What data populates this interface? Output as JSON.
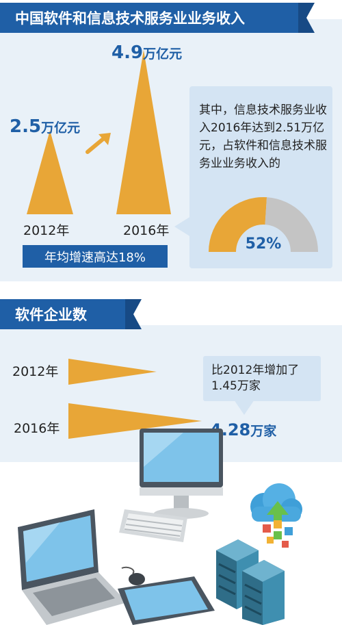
{
  "revenue_section": {
    "title": "中国软件和信息技术服务业业务收入",
    "growth_label": "年均增速高达18%",
    "callout_text": "其中，信息技术服务业收入2016年达到2.51万亿元，占软件和信息技术服务业业务收入的",
    "share_percent_label": "52%"
  },
  "enterprise_section": {
    "title": "软件企业数",
    "callout_text": "比2012年增加了1.45万家"
  },
  "colors": {
    "brand_blue": "#1f5fa6",
    "accent_orange": "#e8a637",
    "panel_bg": "#e9f1f8",
    "callout_bg": "#d4e4f3",
    "gauge_gray": "#c4c4c4"
  },
  "icons": [
    "arrow-up-right-icon",
    "monitor-icon",
    "keyboard-icon",
    "laptop-icon",
    "mouse-icon",
    "tablet-icon",
    "cloud-upload-icon",
    "server-rack-icon"
  ],
  "chart_data": [
    {
      "type": "bar",
      "name": "",
      "unit": "万亿元",
      "categories": [
        "2012年",
        "2016年"
      ],
      "values": [
        2.5,
        4.9
      ],
      "value_labels": [
        {
          "num": "2.5",
          "unit": "万亿元"
        },
        {
          "num": "4.9",
          "unit": "万亿元"
        }
      ]
    },
    {
      "type": "pie",
      "name": "",
      "values": [
        52,
        48
      ],
      "label": "52%"
    },
    {
      "type": "bar",
      "name": "",
      "orientation": "horizontal",
      "categories": [
        "2012年",
        "2016年"
      ],
      "values": [
        2.83,
        4.28
      ],
      "value_labels": [
        null,
        {
          "num": "4.28",
          "unit": "万家"
        }
      ]
    }
  ]
}
